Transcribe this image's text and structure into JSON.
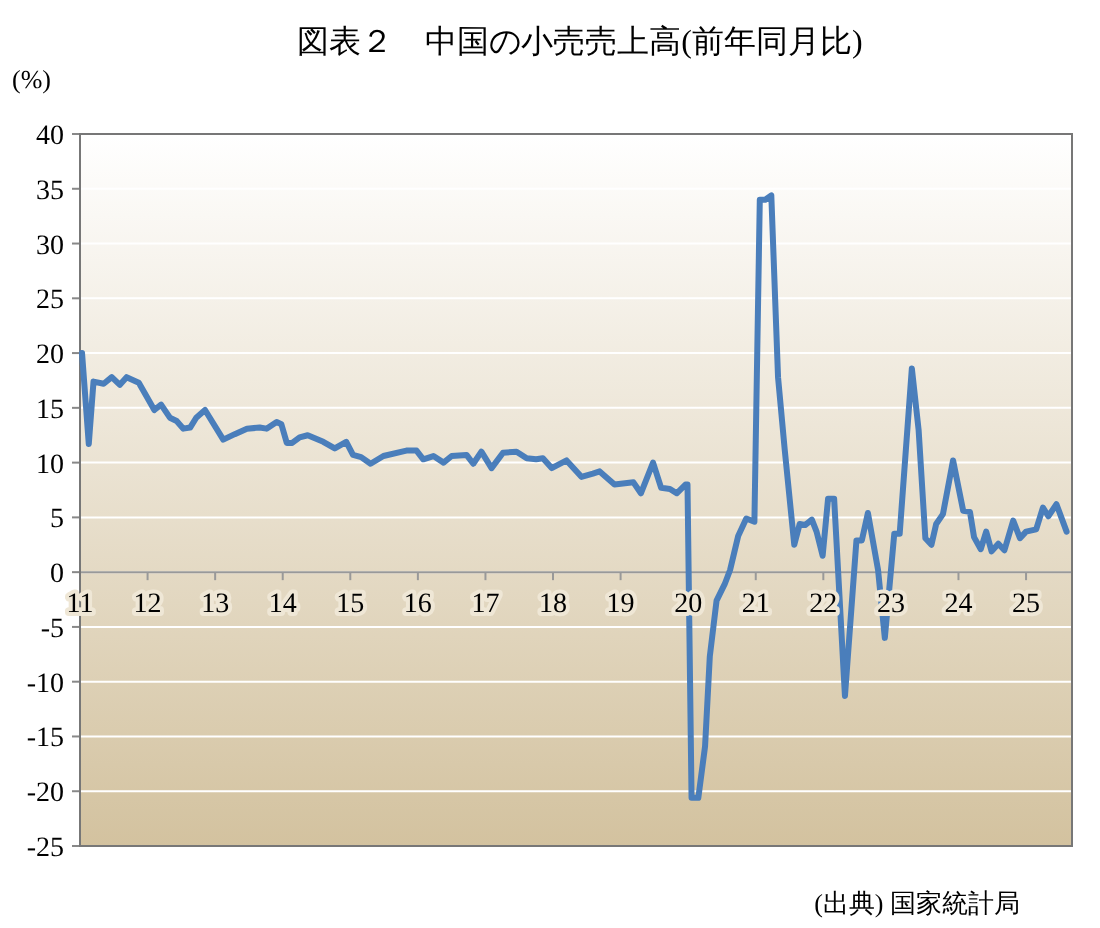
{
  "chart_data": {
    "type": "line",
    "title": "図表２　中国の小売売上高(前年同月比)",
    "ylabel": "(%)",
    "annotations": [
      "(出典) 国家統計局"
    ],
    "x": [
      2011.03,
      2011.13,
      2011.2,
      2011.35,
      2011.47,
      2011.59,
      2011.69,
      2011.87,
      2012.1,
      2012.2,
      2012.33,
      2012.43,
      2012.53,
      2012.63,
      2012.72,
      2012.85,
      2013.12,
      2013.29,
      2013.47,
      2013.66,
      2013.76,
      2013.91,
      2013.98,
      2014.06,
      2014.14,
      2014.25,
      2014.37,
      2014.6,
      2014.77,
      2014.94,
      2015.04,
      2015.16,
      2015.3,
      2015.49,
      2015.83,
      2015.98,
      2016.08,
      2016.23,
      2016.38,
      2016.5,
      2016.72,
      2016.82,
      2016.94,
      2017.09,
      2017.26,
      2017.46,
      2017.61,
      2017.75,
      2017.85,
      2017.98,
      2018.2,
      2018.42,
      2018.59,
      2018.69,
      2018.91,
      2019.19,
      2019.3,
      2019.48,
      2019.6,
      2019.73,
      2019.83,
      2019.96,
      2019.99,
      2020.05,
      2020.15,
      2020.25,
      2020.32,
      2020.42,
      2020.54,
      2020.62,
      2020.74,
      2020.86,
      2020.98,
      2021.06,
      2021.14,
      2021.23,
      2021.33,
      2021.43,
      2021.57,
      2021.65,
      2021.73,
      2021.83,
      2021.9,
      2021.99,
      2022.07,
      2022.16,
      2022.32,
      2022.49,
      2022.57,
      2022.66,
      2022.81,
      2022.91,
      2023.05,
      2023.13,
      2023.31,
      2023.41,
      2023.51,
      2023.6,
      2023.67,
      2023.77,
      2023.92,
      2024.07,
      2024.17,
      2024.23,
      2024.33,
      2024.41,
      2024.49,
      2024.59,
      2024.68,
      2024.81,
      2024.91,
      2025.0,
      2025.15,
      2025.25,
      2025.33,
      2025.45,
      2025.6
    ],
    "series": [
      {
        "color": "#4a7ebb",
        "values": [
          20.0,
          11.7,
          17.4,
          17.2,
          17.8,
          17.1,
          17.8,
          17.3,
          14.8,
          15.3,
          14.1,
          13.8,
          13.1,
          13.2,
          14.1,
          14.8,
          12.1,
          12.6,
          13.1,
          13.2,
          13.1,
          13.7,
          13.5,
          11.8,
          11.8,
          12.3,
          12.5,
          11.9,
          11.3,
          11.9,
          10.7,
          10.5,
          9.9,
          10.6,
          11.1,
          11.1,
          10.3,
          10.6,
          10.0,
          10.6,
          10.7,
          9.9,
          11.0,
          9.5,
          10.9,
          11.0,
          10.4,
          10.3,
          10.4,
          9.5,
          10.2,
          8.7,
          9.0,
          9.2,
          8.0,
          8.2,
          7.2,
          10.0,
          7.7,
          7.6,
          7.2,
          8.0,
          8.0,
          -20.6,
          -20.6,
          -15.9,
          -7.7,
          -2.6,
          -1.1,
          0.2,
          3.3,
          4.9,
          4.6,
          34.0,
          34.0,
          34.4,
          17.8,
          11.1,
          2.5,
          4.4,
          4.3,
          4.8,
          3.7,
          1.5,
          6.7,
          6.7,
          -11.3,
          2.9,
          2.9,
          5.4,
          0.2,
          -6.0,
          3.5,
          3.5,
          18.6,
          13.0,
          3.1,
          2.5,
          4.4,
          5.3,
          10.2,
          5.6,
          5.5,
          3.2,
          2.1,
          3.7,
          1.9,
          2.6,
          2.0,
          4.7,
          3.1,
          3.7,
          3.9,
          5.9,
          5.1,
          6.2,
          3.7
        ]
      }
    ],
    "xlim": [
      2011,
      2025.68
    ],
    "ylim": [
      -25,
      40
    ],
    "xticks": [
      {
        "value": 2011,
        "label": "11"
      },
      {
        "value": 2012,
        "label": "12"
      },
      {
        "value": 2013,
        "label": "13"
      },
      {
        "value": 2014,
        "label": "14"
      },
      {
        "value": 2015,
        "label": "15"
      },
      {
        "value": 2016,
        "label": "16"
      },
      {
        "value": 2017,
        "label": "17"
      },
      {
        "value": 2018,
        "label": "18"
      },
      {
        "value": 2019,
        "label": "19"
      },
      {
        "value": 2020,
        "label": "20"
      },
      {
        "value": 2021,
        "label": "21"
      },
      {
        "value": 2022,
        "label": "22"
      },
      {
        "value": 2023,
        "label": "23"
      },
      {
        "value": 2024,
        "label": "24"
      },
      {
        "value": 2025,
        "label": "25"
      }
    ],
    "yticks": [
      -25,
      -20,
      -15,
      -10,
      -5,
      0,
      5,
      10,
      15,
      20,
      25,
      30,
      35,
      40
    ],
    "grid": "y",
    "line_style": "solid"
  }
}
